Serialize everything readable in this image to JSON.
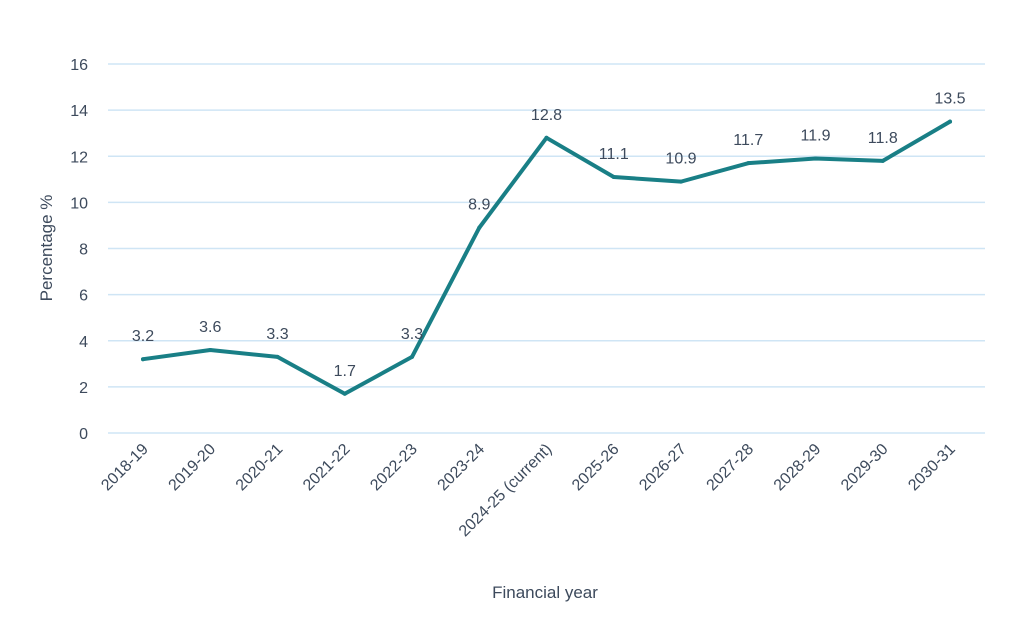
{
  "chart_data": {
    "type": "line",
    "title": "",
    "xlabel": "Financial year",
    "ylabel": "Percentage %",
    "ylim": [
      0,
      16
    ],
    "yticks": [
      0,
      2,
      4,
      6,
      8,
      10,
      12,
      14,
      16
    ],
    "grid": true,
    "categories": [
      "2018-19",
      "2019-20",
      "2020-21",
      "2021-22",
      "2022-23",
      "2023-24",
      "2024-25 (current)",
      "2025-26",
      "2026-27",
      "2027-28",
      "2028-29",
      "2029-30",
      "2030-31"
    ],
    "series": [
      {
        "values": [
          3.2,
          3.6,
          3.3,
          1.7,
          3.3,
          8.9,
          12.8,
          11.1,
          10.9,
          11.7,
          11.9,
          11.8,
          13.5
        ],
        "labels": [
          "3.2",
          "3.6",
          "3.3",
          "1.7",
          "3.3",
          "8.9",
          "12.8",
          "11.1",
          "10.9",
          "11.7",
          "11.9",
          "11.8",
          "13.5"
        ],
        "color": "#197f86"
      }
    ]
  }
}
